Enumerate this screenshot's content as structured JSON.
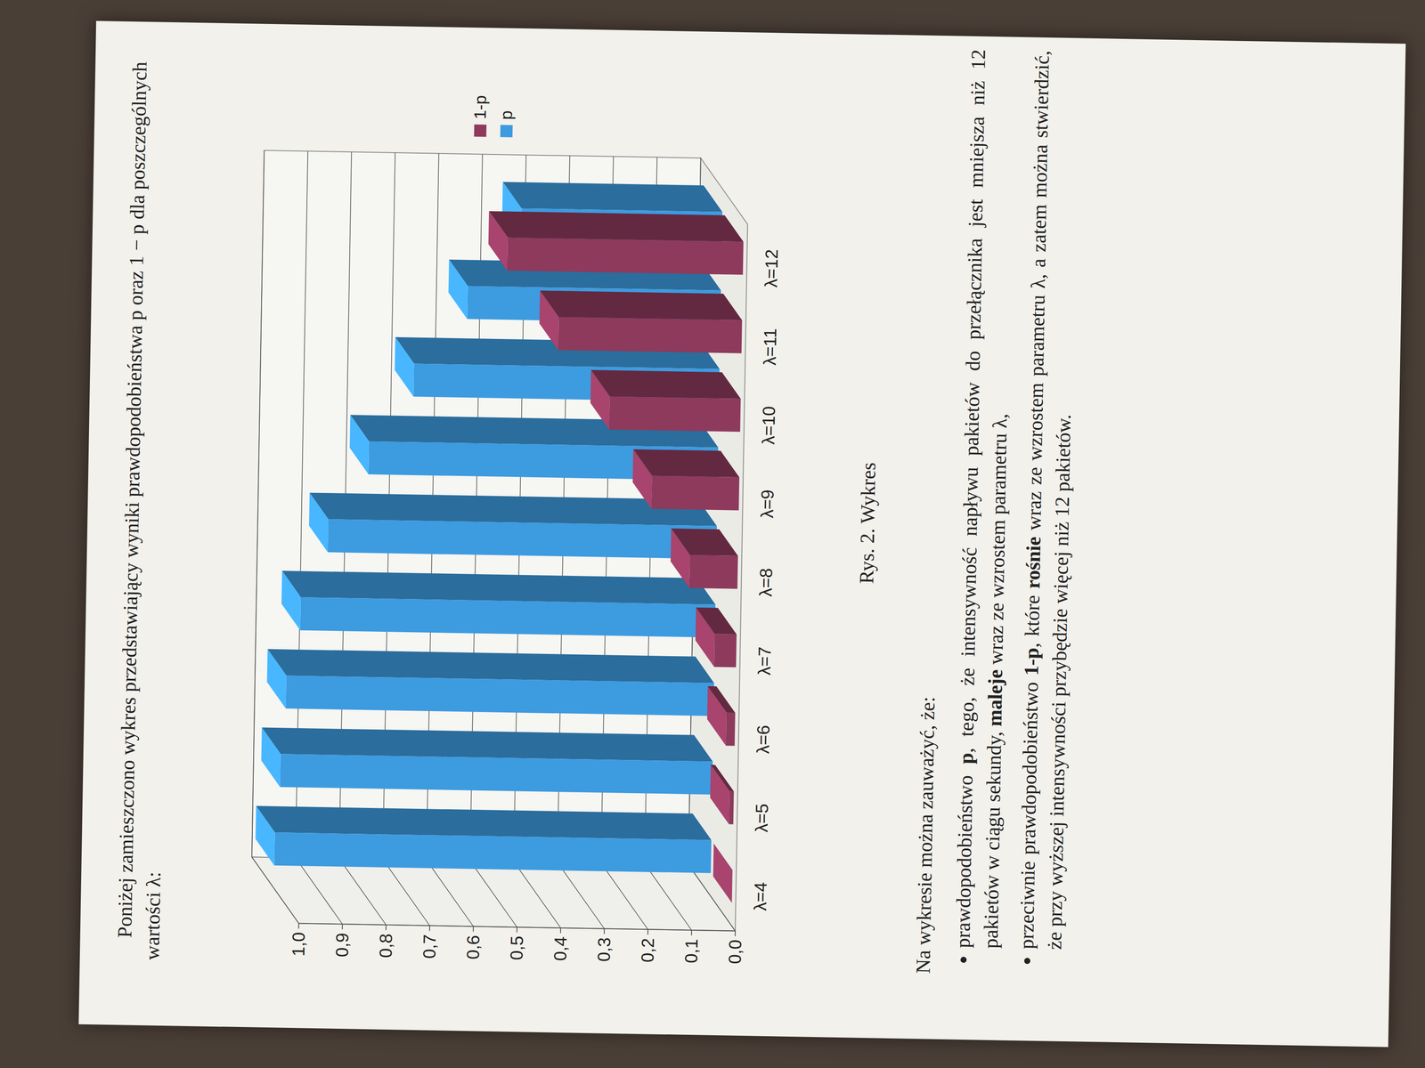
{
  "intro": "Poniżej zamieszczono wykres przedstawiający wyniki prawdopodobieństwa p oraz 1 − p dla poszczególnych wartości λ:",
  "chart_data": {
    "type": "bar",
    "categories": [
      "λ=4",
      "λ=5",
      "λ=6",
      "λ=7",
      "λ=8",
      "λ=9",
      "λ=10",
      "λ=11",
      "λ=12"
    ],
    "series": [
      {
        "name": "1-p",
        "color": "#8e3a5c",
        "values": [
          0.0,
          0.01,
          0.02,
          0.05,
          0.11,
          0.2,
          0.3,
          0.42,
          0.54
        ]
      },
      {
        "name": "p",
        "color": "#3d9be0",
        "values": [
          1.0,
          0.99,
          0.98,
          0.95,
          0.89,
          0.8,
          0.7,
          0.58,
          0.46
        ]
      }
    ],
    "ylim": [
      0,
      1
    ],
    "yticks": [
      {
        "value": 0,
        "label": "0,0"
      },
      {
        "value": 0.1,
        "label": "0,1"
      },
      {
        "value": 0.2,
        "label": "0,2"
      },
      {
        "value": 0.3,
        "label": "0,3"
      },
      {
        "value": 0.4,
        "label": "0,4"
      },
      {
        "value": 0.5,
        "label": "0,5"
      },
      {
        "value": 0.6,
        "label": "0,6"
      },
      {
        "value": 0.7,
        "label": "0,7"
      },
      {
        "value": 0.8,
        "label": "0,8"
      },
      {
        "value": 0.9,
        "label": "0,9"
      },
      {
        "value": 1,
        "label": "1,0"
      }
    ],
    "grid": true,
    "legend": "right"
  },
  "caption": "Rys. 2. Wykres",
  "lead": "Na wykresie można zauważyć, że:",
  "bullets": [
    [
      {
        "text": "prawdopodobieństwo ",
        "bold": false
      },
      {
        "text": "p",
        "bold": true
      },
      {
        "text": ", tego, że intensywność napływu pakietów do przełącznika jest mniejsza niż 12 pakietów w ciągu sekundy, ",
        "bold": false
      },
      {
        "text": "maleje",
        "bold": true
      },
      {
        "text": " wraz ze wzrostem parametru λ,",
        "bold": false
      }
    ],
    [
      {
        "text": "przeciwnie prawdopodobieństwo ",
        "bold": false
      },
      {
        "text": "1-p",
        "bold": true
      },
      {
        "text": ", które ",
        "bold": false
      },
      {
        "text": "rośnie",
        "bold": true
      },
      {
        "text": " wraz ze wzrostem parametru λ, a zatem można stwierdzić, że przy wyższej intensywności przybędzie więcej niż 12 pakietów.",
        "bold": false
      }
    ]
  ]
}
